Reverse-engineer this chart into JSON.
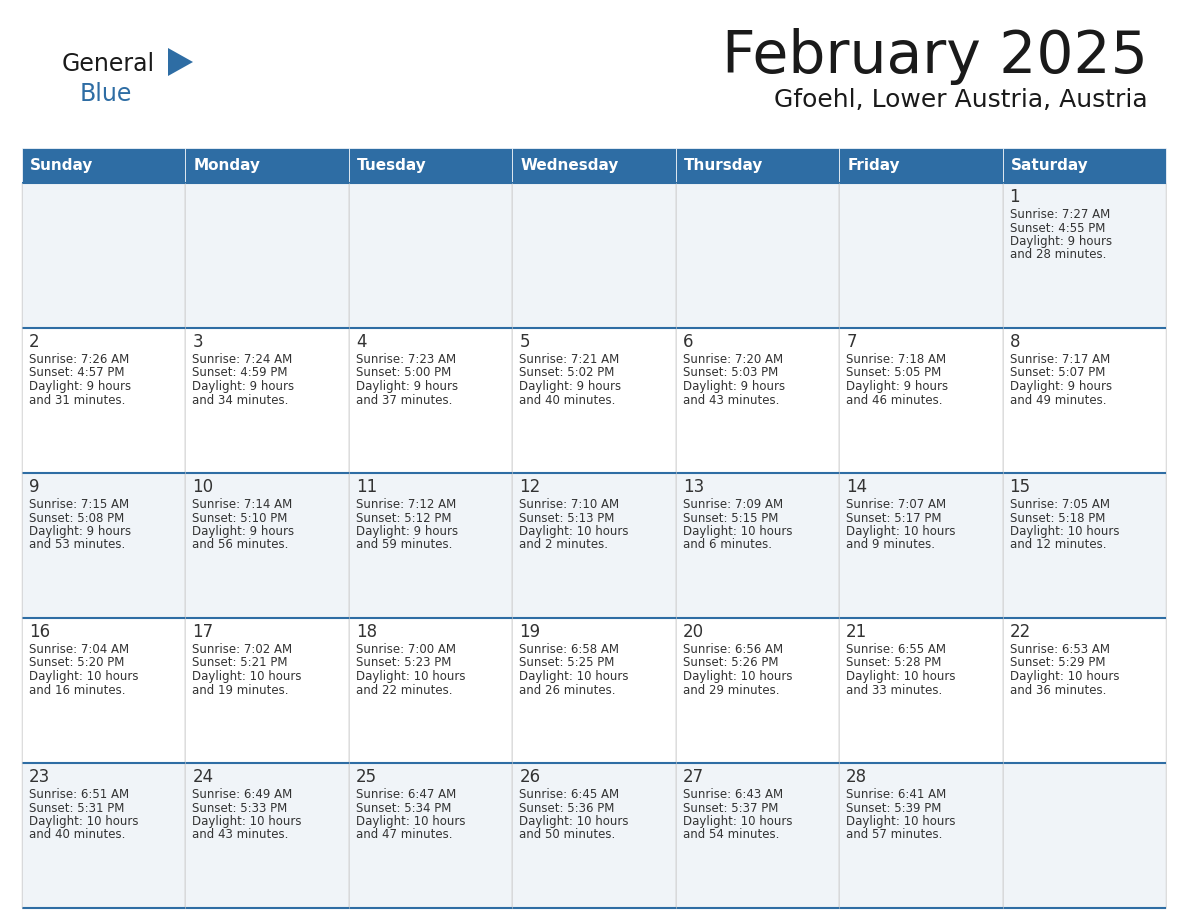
{
  "title": "February 2025",
  "subtitle": "Gfoehl, Lower Austria, Austria",
  "header_bg_color": "#2e6da4",
  "header_text_color": "#ffffff",
  "day_names": [
    "Sunday",
    "Monday",
    "Tuesday",
    "Wednesday",
    "Thursday",
    "Friday",
    "Saturday"
  ],
  "grid_line_color": "#2e6da4",
  "cell_bg_even": "#f0f4f8",
  "cell_bg_odd": "#ffffff",
  "day_number_color": "#333333",
  "text_color": "#333333",
  "days": [
    {
      "day": 1,
      "col": 6,
      "row": 0,
      "sunrise": "7:27 AM",
      "sunset": "4:55 PM",
      "daylight_h": "9 hours",
      "daylight_m": "28 minutes."
    },
    {
      "day": 2,
      "col": 0,
      "row": 1,
      "sunrise": "7:26 AM",
      "sunset": "4:57 PM",
      "daylight_h": "9 hours",
      "daylight_m": "31 minutes."
    },
    {
      "day": 3,
      "col": 1,
      "row": 1,
      "sunrise": "7:24 AM",
      "sunset": "4:59 PM",
      "daylight_h": "9 hours",
      "daylight_m": "34 minutes."
    },
    {
      "day": 4,
      "col": 2,
      "row": 1,
      "sunrise": "7:23 AM",
      "sunset": "5:00 PM",
      "daylight_h": "9 hours",
      "daylight_m": "37 minutes."
    },
    {
      "day": 5,
      "col": 3,
      "row": 1,
      "sunrise": "7:21 AM",
      "sunset": "5:02 PM",
      "daylight_h": "9 hours",
      "daylight_m": "40 minutes."
    },
    {
      "day": 6,
      "col": 4,
      "row": 1,
      "sunrise": "7:20 AM",
      "sunset": "5:03 PM",
      "daylight_h": "9 hours",
      "daylight_m": "43 minutes."
    },
    {
      "day": 7,
      "col": 5,
      "row": 1,
      "sunrise": "7:18 AM",
      "sunset": "5:05 PM",
      "daylight_h": "9 hours",
      "daylight_m": "46 minutes."
    },
    {
      "day": 8,
      "col": 6,
      "row": 1,
      "sunrise": "7:17 AM",
      "sunset": "5:07 PM",
      "daylight_h": "9 hours",
      "daylight_m": "49 minutes."
    },
    {
      "day": 9,
      "col": 0,
      "row": 2,
      "sunrise": "7:15 AM",
      "sunset": "5:08 PM",
      "daylight_h": "9 hours",
      "daylight_m": "53 minutes."
    },
    {
      "day": 10,
      "col": 1,
      "row": 2,
      "sunrise": "7:14 AM",
      "sunset": "5:10 PM",
      "daylight_h": "9 hours",
      "daylight_m": "56 minutes."
    },
    {
      "day": 11,
      "col": 2,
      "row": 2,
      "sunrise": "7:12 AM",
      "sunset": "5:12 PM",
      "daylight_h": "9 hours",
      "daylight_m": "59 minutes."
    },
    {
      "day": 12,
      "col": 3,
      "row": 2,
      "sunrise": "7:10 AM",
      "sunset": "5:13 PM",
      "daylight_h": "10 hours",
      "daylight_m": "2 minutes."
    },
    {
      "day": 13,
      "col": 4,
      "row": 2,
      "sunrise": "7:09 AM",
      "sunset": "5:15 PM",
      "daylight_h": "10 hours",
      "daylight_m": "6 minutes."
    },
    {
      "day": 14,
      "col": 5,
      "row": 2,
      "sunrise": "7:07 AM",
      "sunset": "5:17 PM",
      "daylight_h": "10 hours",
      "daylight_m": "9 minutes."
    },
    {
      "day": 15,
      "col": 6,
      "row": 2,
      "sunrise": "7:05 AM",
      "sunset": "5:18 PM",
      "daylight_h": "10 hours",
      "daylight_m": "12 minutes."
    },
    {
      "day": 16,
      "col": 0,
      "row": 3,
      "sunrise": "7:04 AM",
      "sunset": "5:20 PM",
      "daylight_h": "10 hours",
      "daylight_m": "16 minutes."
    },
    {
      "day": 17,
      "col": 1,
      "row": 3,
      "sunrise": "7:02 AM",
      "sunset": "5:21 PM",
      "daylight_h": "10 hours",
      "daylight_m": "19 minutes."
    },
    {
      "day": 18,
      "col": 2,
      "row": 3,
      "sunrise": "7:00 AM",
      "sunset": "5:23 PM",
      "daylight_h": "10 hours",
      "daylight_m": "22 minutes."
    },
    {
      "day": 19,
      "col": 3,
      "row": 3,
      "sunrise": "6:58 AM",
      "sunset": "5:25 PM",
      "daylight_h": "10 hours",
      "daylight_m": "26 minutes."
    },
    {
      "day": 20,
      "col": 4,
      "row": 3,
      "sunrise": "6:56 AM",
      "sunset": "5:26 PM",
      "daylight_h": "10 hours",
      "daylight_m": "29 minutes."
    },
    {
      "day": 21,
      "col": 5,
      "row": 3,
      "sunrise": "6:55 AM",
      "sunset": "5:28 PM",
      "daylight_h": "10 hours",
      "daylight_m": "33 minutes."
    },
    {
      "day": 22,
      "col": 6,
      "row": 3,
      "sunrise": "6:53 AM",
      "sunset": "5:29 PM",
      "daylight_h": "10 hours",
      "daylight_m": "36 minutes."
    },
    {
      "day": 23,
      "col": 0,
      "row": 4,
      "sunrise": "6:51 AM",
      "sunset": "5:31 PM",
      "daylight_h": "10 hours",
      "daylight_m": "40 minutes."
    },
    {
      "day": 24,
      "col": 1,
      "row": 4,
      "sunrise": "6:49 AM",
      "sunset": "5:33 PM",
      "daylight_h": "10 hours",
      "daylight_m": "43 minutes."
    },
    {
      "day": 25,
      "col": 2,
      "row": 4,
      "sunrise": "6:47 AM",
      "sunset": "5:34 PM",
      "daylight_h": "10 hours",
      "daylight_m": "47 minutes."
    },
    {
      "day": 26,
      "col": 3,
      "row": 4,
      "sunrise": "6:45 AM",
      "sunset": "5:36 PM",
      "daylight_h": "10 hours",
      "daylight_m": "50 minutes."
    },
    {
      "day": 27,
      "col": 4,
      "row": 4,
      "sunrise": "6:43 AM",
      "sunset": "5:37 PM",
      "daylight_h": "10 hours",
      "daylight_m": "54 minutes."
    },
    {
      "day": 28,
      "col": 5,
      "row": 4,
      "sunrise": "6:41 AM",
      "sunset": "5:39 PM",
      "daylight_h": "10 hours",
      "daylight_m": "57 minutes."
    }
  ]
}
